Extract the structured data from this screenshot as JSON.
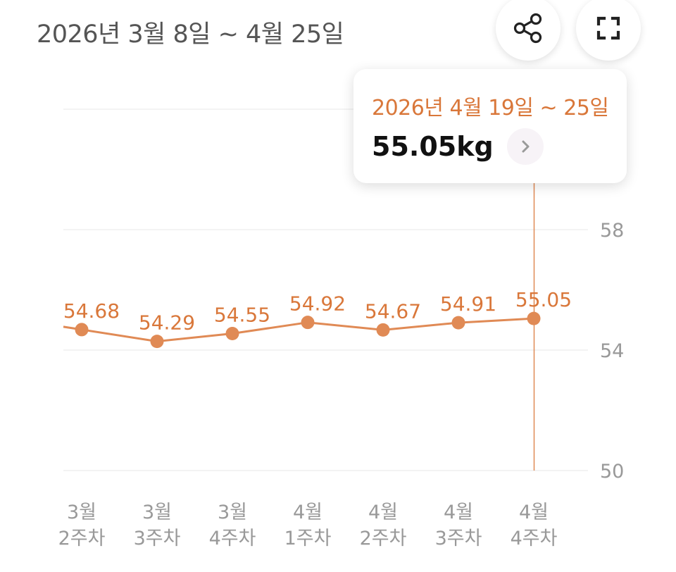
{
  "header": {
    "date_range": "2026년 3월 8일 ~ 4월 25일",
    "share_icon": "share-icon",
    "expand_icon": "fullscreen-icon"
  },
  "tooltip": {
    "range": "2026년 4월 19일 ~ 25일",
    "value": "55.05kg",
    "arrow_icon": "chevron-right-icon"
  },
  "colors": {
    "accent": "#d9773a",
    "line": "#e08a55",
    "grid": "#ececec",
    "axis_text": "#999999"
  },
  "chart_data": {
    "type": "line",
    "categories": [
      [
        "3월",
        "2주차"
      ],
      [
        "3월",
        "3주차"
      ],
      [
        "3월",
        "4주차"
      ],
      [
        "4월",
        "1주차"
      ],
      [
        "4월",
        "2주차"
      ],
      [
        "4월",
        "3주차"
      ],
      [
        "4월",
        "4주차"
      ]
    ],
    "values": [
      54.68,
      54.29,
      54.55,
      54.92,
      54.67,
      54.91,
      55.05
    ],
    "value_labels": [
      "54.68",
      "54.29",
      "54.55",
      "54.92",
      "54.67",
      "54.91",
      "55.05"
    ],
    "y_ticks": [
      "58",
      "54",
      "50"
    ],
    "y_tick_values": [
      58,
      54,
      50
    ],
    "ylim": [
      50,
      62
    ],
    "selected_index": 6,
    "grid": true
  }
}
